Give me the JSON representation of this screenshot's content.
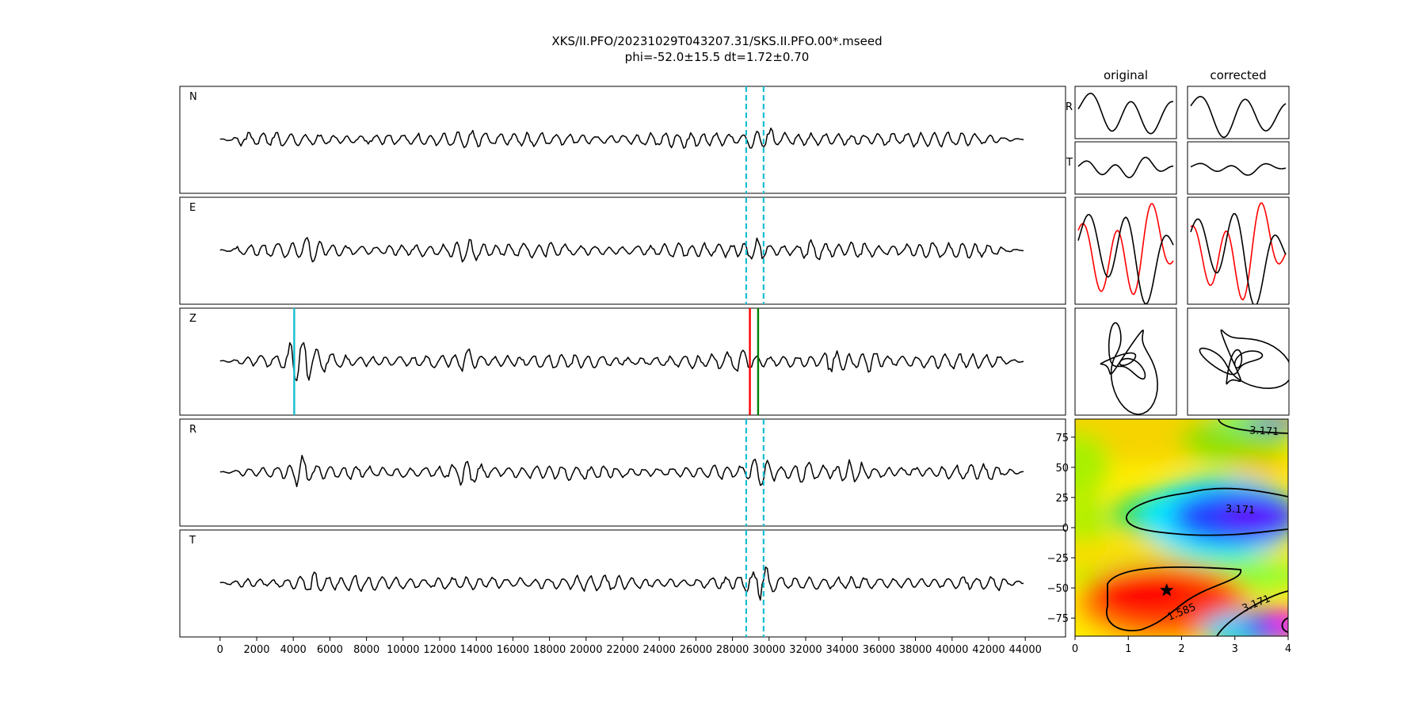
{
  "title": {
    "line1": "XKS/II.PFO/20231029T043207.31/SKS.II.PFO.00*.mseed",
    "line2": "phi=-52.0±15.5 dt=1.72±0.70"
  },
  "colors": {
    "trace": "#000000",
    "window_marker": "#17becf",
    "p_pick": "#17becf",
    "sks_pick_red": "#ff0000",
    "sks_pick_green": "#008000",
    "corrected_overlay": "#ff0000"
  },
  "chart_data": [
    {
      "type": "line",
      "name": "waveform-panels",
      "panels": [
        "N",
        "E",
        "Z",
        "R",
        "T"
      ],
      "xlim": [
        -2200,
        46200
      ],
      "x_ticks": [
        0,
        2000,
        4000,
        6000,
        8000,
        10000,
        12000,
        14000,
        16000,
        18000,
        20000,
        22000,
        24000,
        26000,
        28000,
        30000,
        32000,
        34000,
        36000,
        38000,
        40000,
        42000,
        44000
      ],
      "x_tick_labels": [
        "0",
        "2000",
        "4000",
        "6000",
        "8000",
        "10000",
        "12000",
        "14000",
        "16000",
        "18000",
        "20000",
        "22000",
        "24000",
        "26000",
        "28000",
        "30000",
        "32000",
        "34000",
        "36000",
        "38000",
        "40000",
        "42000",
        "44000"
      ],
      "trace_x_range": [
        0,
        44000
      ],
      "window_lines_x": [
        28750,
        29700
      ],
      "window_lines_panels": [
        "N",
        "E",
        "R",
        "T"
      ],
      "z_pick_lines": [
        {
          "x": 4050,
          "color": "#17becf"
        },
        {
          "x": 28950,
          "color": "#ff0000"
        },
        {
          "x": 29400,
          "color": "#008000"
        }
      ],
      "grid": false
    },
    {
      "type": "line",
      "name": "particle-motion-panels",
      "columns": [
        "original",
        "corrected"
      ],
      "rows": [
        "R",
        "T"
      ],
      "overlay_colors": [
        "#000000",
        "#ff0000"
      ]
    },
    {
      "type": "heatmap",
      "name": "phi-dt-grid-search",
      "xlim": [
        0,
        4
      ],
      "ylim": [
        -90,
        90
      ],
      "x_ticks": [
        0,
        1,
        2,
        3,
        4
      ],
      "x_tick_labels": [
        "0",
        "1",
        "2",
        "3",
        "4"
      ],
      "y_ticks": [
        75,
        50,
        25,
        0,
        -25,
        -50,
        -75
      ],
      "y_tick_labels": [
        "75",
        "50",
        "25",
        "0",
        "−25",
        "−50",
        "−75"
      ],
      "contours": [
        {
          "label": "3.171",
          "level": 3.171
        },
        {
          "label": "1.585",
          "level": 1.585
        }
      ],
      "contour_label_positions": [
        {
          "label": "3.171",
          "x": 3.55,
          "y": 80
        },
        {
          "label": "3.171",
          "x": 3.1,
          "y": 15
        },
        {
          "label": "3.171",
          "x": 3.4,
          "y": -63
        },
        {
          "label": "1.585",
          "x": 2.0,
          "y": -70
        }
      ],
      "best": {
        "dt": 1.72,
        "phi": -52.0
      },
      "colormap": "hsv"
    }
  ]
}
